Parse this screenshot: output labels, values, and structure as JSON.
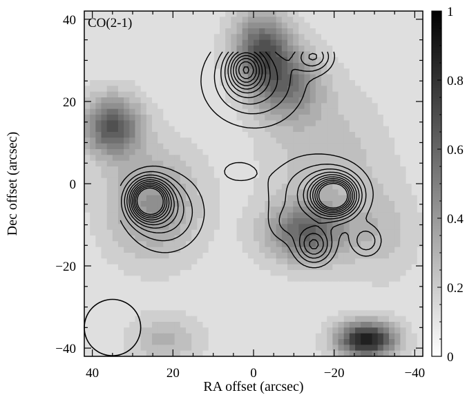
{
  "chart_data": {
    "type": "heatmap",
    "title": "",
    "panel_label": "CO(2-1)",
    "xlabel": "RA offset (arcsec)",
    "ylabel": "Dec offset (arcsec)",
    "xlim": [
      42,
      -42
    ],
    "ylim": [
      -42,
      42
    ],
    "x_ticks": [
      40,
      20,
      0,
      -20,
      -40
    ],
    "x_tick_labels": [
      "40",
      "20",
      "0",
      "−20",
      "−40"
    ],
    "y_ticks": [
      40,
      20,
      0,
      -20,
      -40
    ],
    "y_tick_labels": [
      "40",
      "20",
      "0",
      "−20",
      "−40"
    ],
    "colorbar": {
      "ticks": [
        1,
        0.8,
        0.6,
        0.4,
        0.2,
        0
      ],
      "tick_labels": [
        "1",
        "0.8",
        "0.6",
        "0.4",
        "0.2",
        "0"
      ],
      "range": [
        0,
        1
      ],
      "colormap": "grayscale (0 = white, 1 = black)"
    },
    "background_level": 0.12,
    "grayscale_components": [
      {
        "ra": 35,
        "dec": 14,
        "amp": 0.55,
        "sx": 5,
        "sy": 5
      },
      {
        "ra": 25,
        "dec": -5,
        "amp": 0.3,
        "sx": 8,
        "sy": 9
      },
      {
        "ra": -2,
        "dec": 33,
        "amp": 0.5,
        "sx": 5,
        "sy": 6
      },
      {
        "ra": -8,
        "dec": 24,
        "amp": 0.4,
        "sx": 6,
        "sy": 6
      },
      {
        "ra": -13,
        "dec": -12,
        "amp": 0.45,
        "sx": 7,
        "sy": 5
      },
      {
        "ra": -28,
        "dec": -38,
        "amp": 0.8,
        "sx": 5,
        "sy": 3
      },
      {
        "ra": -18,
        "dec": 5,
        "amp": 0.15,
        "sx": 10,
        "sy": 12
      },
      {
        "ra": 22,
        "dec": -38,
        "amp": 0.18,
        "sx": 6,
        "sy": 4
      },
      {
        "ra": -32,
        "dec": -12,
        "amp": 0.12,
        "sx": 6,
        "sy": 8
      }
    ],
    "contour_components": [
      {
        "ra": 26,
        "dec": -4,
        "amp": 10,
        "sx": 3.2,
        "sy": 3.2
      },
      {
        "ra": 22,
        "dec": -7,
        "amp": 3,
        "sx": 6,
        "sy": 6
      },
      {
        "ra": -20,
        "dec": -3,
        "amp": 10,
        "sx": 3.5,
        "sy": 3.0
      },
      {
        "ra": -16,
        "dec": -2,
        "amp": 2.5,
        "sx": 8,
        "sy": 6
      },
      {
        "ra": 2,
        "dec": 28,
        "amp": 5.5,
        "sx": 3,
        "sy": 3.5
      },
      {
        "ra": 0,
        "dec": 25,
        "amp": 3,
        "sx": 8,
        "sy": 7
      },
      {
        "ra": -15,
        "dec": -15,
        "amp": 4,
        "sx": 3,
        "sy": 3
      },
      {
        "ra": -28,
        "dec": -14,
        "amp": 2.2,
        "sx": 2.5,
        "sy": 2.5
      },
      {
        "ra": -15,
        "dec": 31,
        "amp": 3,
        "sx": 3,
        "sy": 2.5
      },
      {
        "ra": -8,
        "dec": -10,
        "amp": 1.2,
        "sx": 3,
        "sy": 3
      },
      {
        "ra": 4,
        "dec": 3,
        "amp": 1.0,
        "sx": 4,
        "sy": 2.5
      }
    ],
    "contour_levels": [
      0.8,
      1.6,
      2.4,
      3.2,
      4.0,
      4.8,
      5.6,
      6.4,
      7.2,
      8.0
    ],
    "contour_extent": {
      "ra": [
        33,
        -33
      ],
      "dec": [
        -33,
        32
      ]
    },
    "beam": {
      "ra": 35,
      "dec": -35,
      "diameter_arcsec": 14
    }
  }
}
